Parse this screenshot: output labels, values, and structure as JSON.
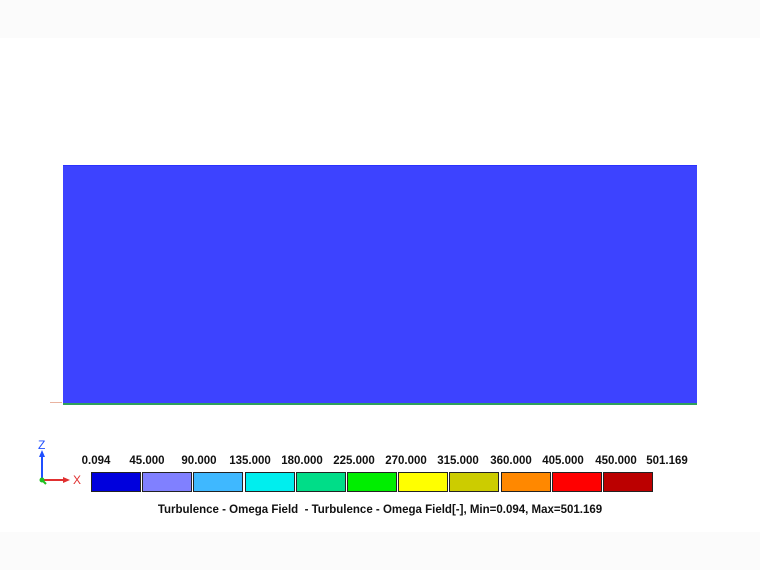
{
  "legend": {
    "values": [
      "0.094",
      "45.000",
      "90.000",
      "135.000",
      "180.000",
      "225.000",
      "270.000",
      "315.000",
      "360.000",
      "405.000",
      "450.000",
      "501.169"
    ],
    "colors": [
      "#0000dd",
      "#8080ff",
      "#3fb8ff",
      "#00eeee",
      "#00dd88",
      "#00ee00",
      "#ffff00",
      "#cccc00",
      "#ff8800",
      "#ff0000",
      "#bb0000"
    ],
    "caption": "Turbulence - Omega Field  - Turbulence - Omega Field[-], Min=0.094, Max=501.169"
  },
  "axes": {
    "vertical": "Z",
    "horizontal": "X",
    "vertical_color": "#1f4fff",
    "horizontal_color": "#e03030",
    "out_of_plane_color": "#20c020"
  },
  "field": {
    "fill_color": "#3d43ff"
  }
}
